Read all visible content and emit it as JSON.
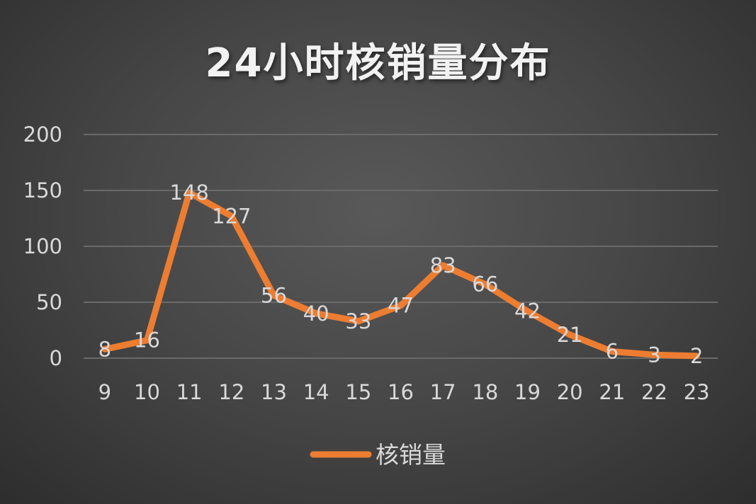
{
  "chart_data": {
    "type": "line",
    "title": "24小时核销量分布",
    "xlabel": "",
    "ylabel": "",
    "x": [
      "9",
      "10",
      "11",
      "12",
      "13",
      "14",
      "15",
      "16",
      "17",
      "18",
      "19",
      "20",
      "21",
      "22",
      "23"
    ],
    "series": [
      {
        "name": "核销量",
        "values": [
          8,
          16,
          148,
          127,
          56,
          40,
          33,
          47,
          83,
          66,
          42,
          21,
          6,
          3,
          2
        ]
      }
    ],
    "ylim": [
      0,
      200
    ],
    "yticks": [
      "0",
      "50",
      "100",
      "150",
      "200"
    ],
    "grid": true,
    "legend": "bottom",
    "data_labels": true,
    "colors": {
      "line": "#ed7d31",
      "text": "#d9d9d9",
      "grid": "#6a6a6a",
      "background": "#474747"
    }
  }
}
